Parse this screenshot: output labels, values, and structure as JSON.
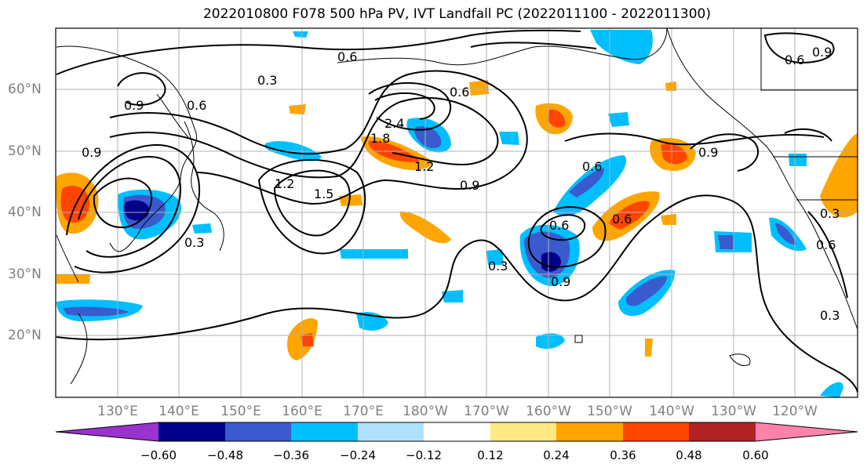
{
  "title": "2022010800 F078 500 hPa PV, IVT Landfall PC (2022011100 - 2022011300)",
  "lon_labels": [
    "130°E",
    "140°E",
    "150°E",
    "160°E",
    "170°E",
    "180°W",
    "170°W",
    "160°W",
    "150°W",
    "140°W",
    "130°W",
    "120°W"
  ],
  "lat_labels": [
    "60°N",
    "50°N",
    "40°N",
    "30°N",
    "20°N"
  ],
  "colorbar": {
    "tick_labels": [
      "−0.60",
      "−0.48",
      "−0.36",
      "−0.24",
      "−0.12",
      "0.12",
      "0.24",
      "0.36",
      "0.48",
      "0.60"
    ],
    "colors": [
      "#9a32cd",
      "#00008b",
      "#3a5bcd",
      "#00bfff",
      "#b0e2ff",
      "#ffffff",
      "#ffe985",
      "#ffa500",
      "#ff4500",
      "#b22222",
      "#ff82ab"
    ]
  },
  "contour_labels": [
    "0.6",
    "0.9",
    "0.3",
    "0.6",
    "0.9",
    "1.2",
    "1.5",
    "0.3",
    "2.4",
    "1.8",
    "1.2",
    "0.9",
    "0.6",
    "0.6",
    "0.3",
    "0.9",
    "0.6",
    "0.9",
    "0.6",
    "0.6",
    "0.9",
    "0.3",
    "0.6",
    "0.3"
  ],
  "colors": {
    "contour": "#000000",
    "grid": "#b0b0b0",
    "axis_label": "#808080",
    "coast": "#000000"
  }
}
